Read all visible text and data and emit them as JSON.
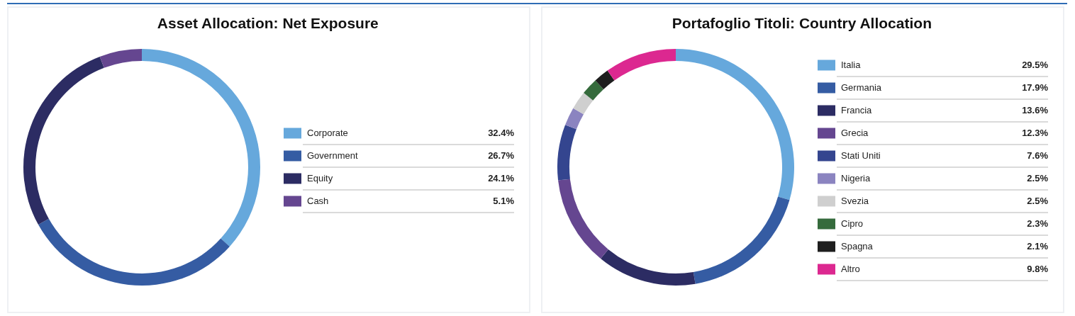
{
  "chart_data": [
    {
      "type": "donut",
      "title": "Asset Allocation: Net Exposure",
      "categories": [
        "Corporate",
        "Government",
        "Equity",
        "Cash"
      ],
      "values": [
        32.4,
        26.7,
        24.1,
        5.1
      ],
      "value_labels": [
        "32.4%",
        "26.7%",
        "24.1%",
        "5.1%"
      ],
      "colors": [
        "#66a8dc",
        "#355ca3",
        "#2c2c63",
        "#654690"
      ],
      "legend": "right"
    },
    {
      "type": "donut",
      "title": "Portafoglio Titoli: Country Allocation",
      "categories": [
        "Italia",
        "Germania",
        "Francia",
        "Grecia",
        "Stati Uniti",
        "Nigeria",
        "Svezia",
        "Cipro",
        "Spagna",
        "Altro"
      ],
      "values": [
        29.5,
        17.9,
        13.6,
        12.3,
        7.6,
        2.5,
        2.5,
        2.3,
        2.1,
        9.8
      ],
      "value_labels": [
        "29.5%",
        "17.9%",
        "13.6%",
        "12.3%",
        "7.6%",
        "2.5%",
        "2.5%",
        "2.3%",
        "2.1%",
        "9.8%"
      ],
      "colors": [
        "#66a8dc",
        "#355ca3",
        "#2c2c63",
        "#654690",
        "#34458f",
        "#8b84c0",
        "#cfcfcf",
        "#356b3c",
        "#1e1e1e",
        "#dc2890"
      ],
      "legend": "right"
    }
  ]
}
